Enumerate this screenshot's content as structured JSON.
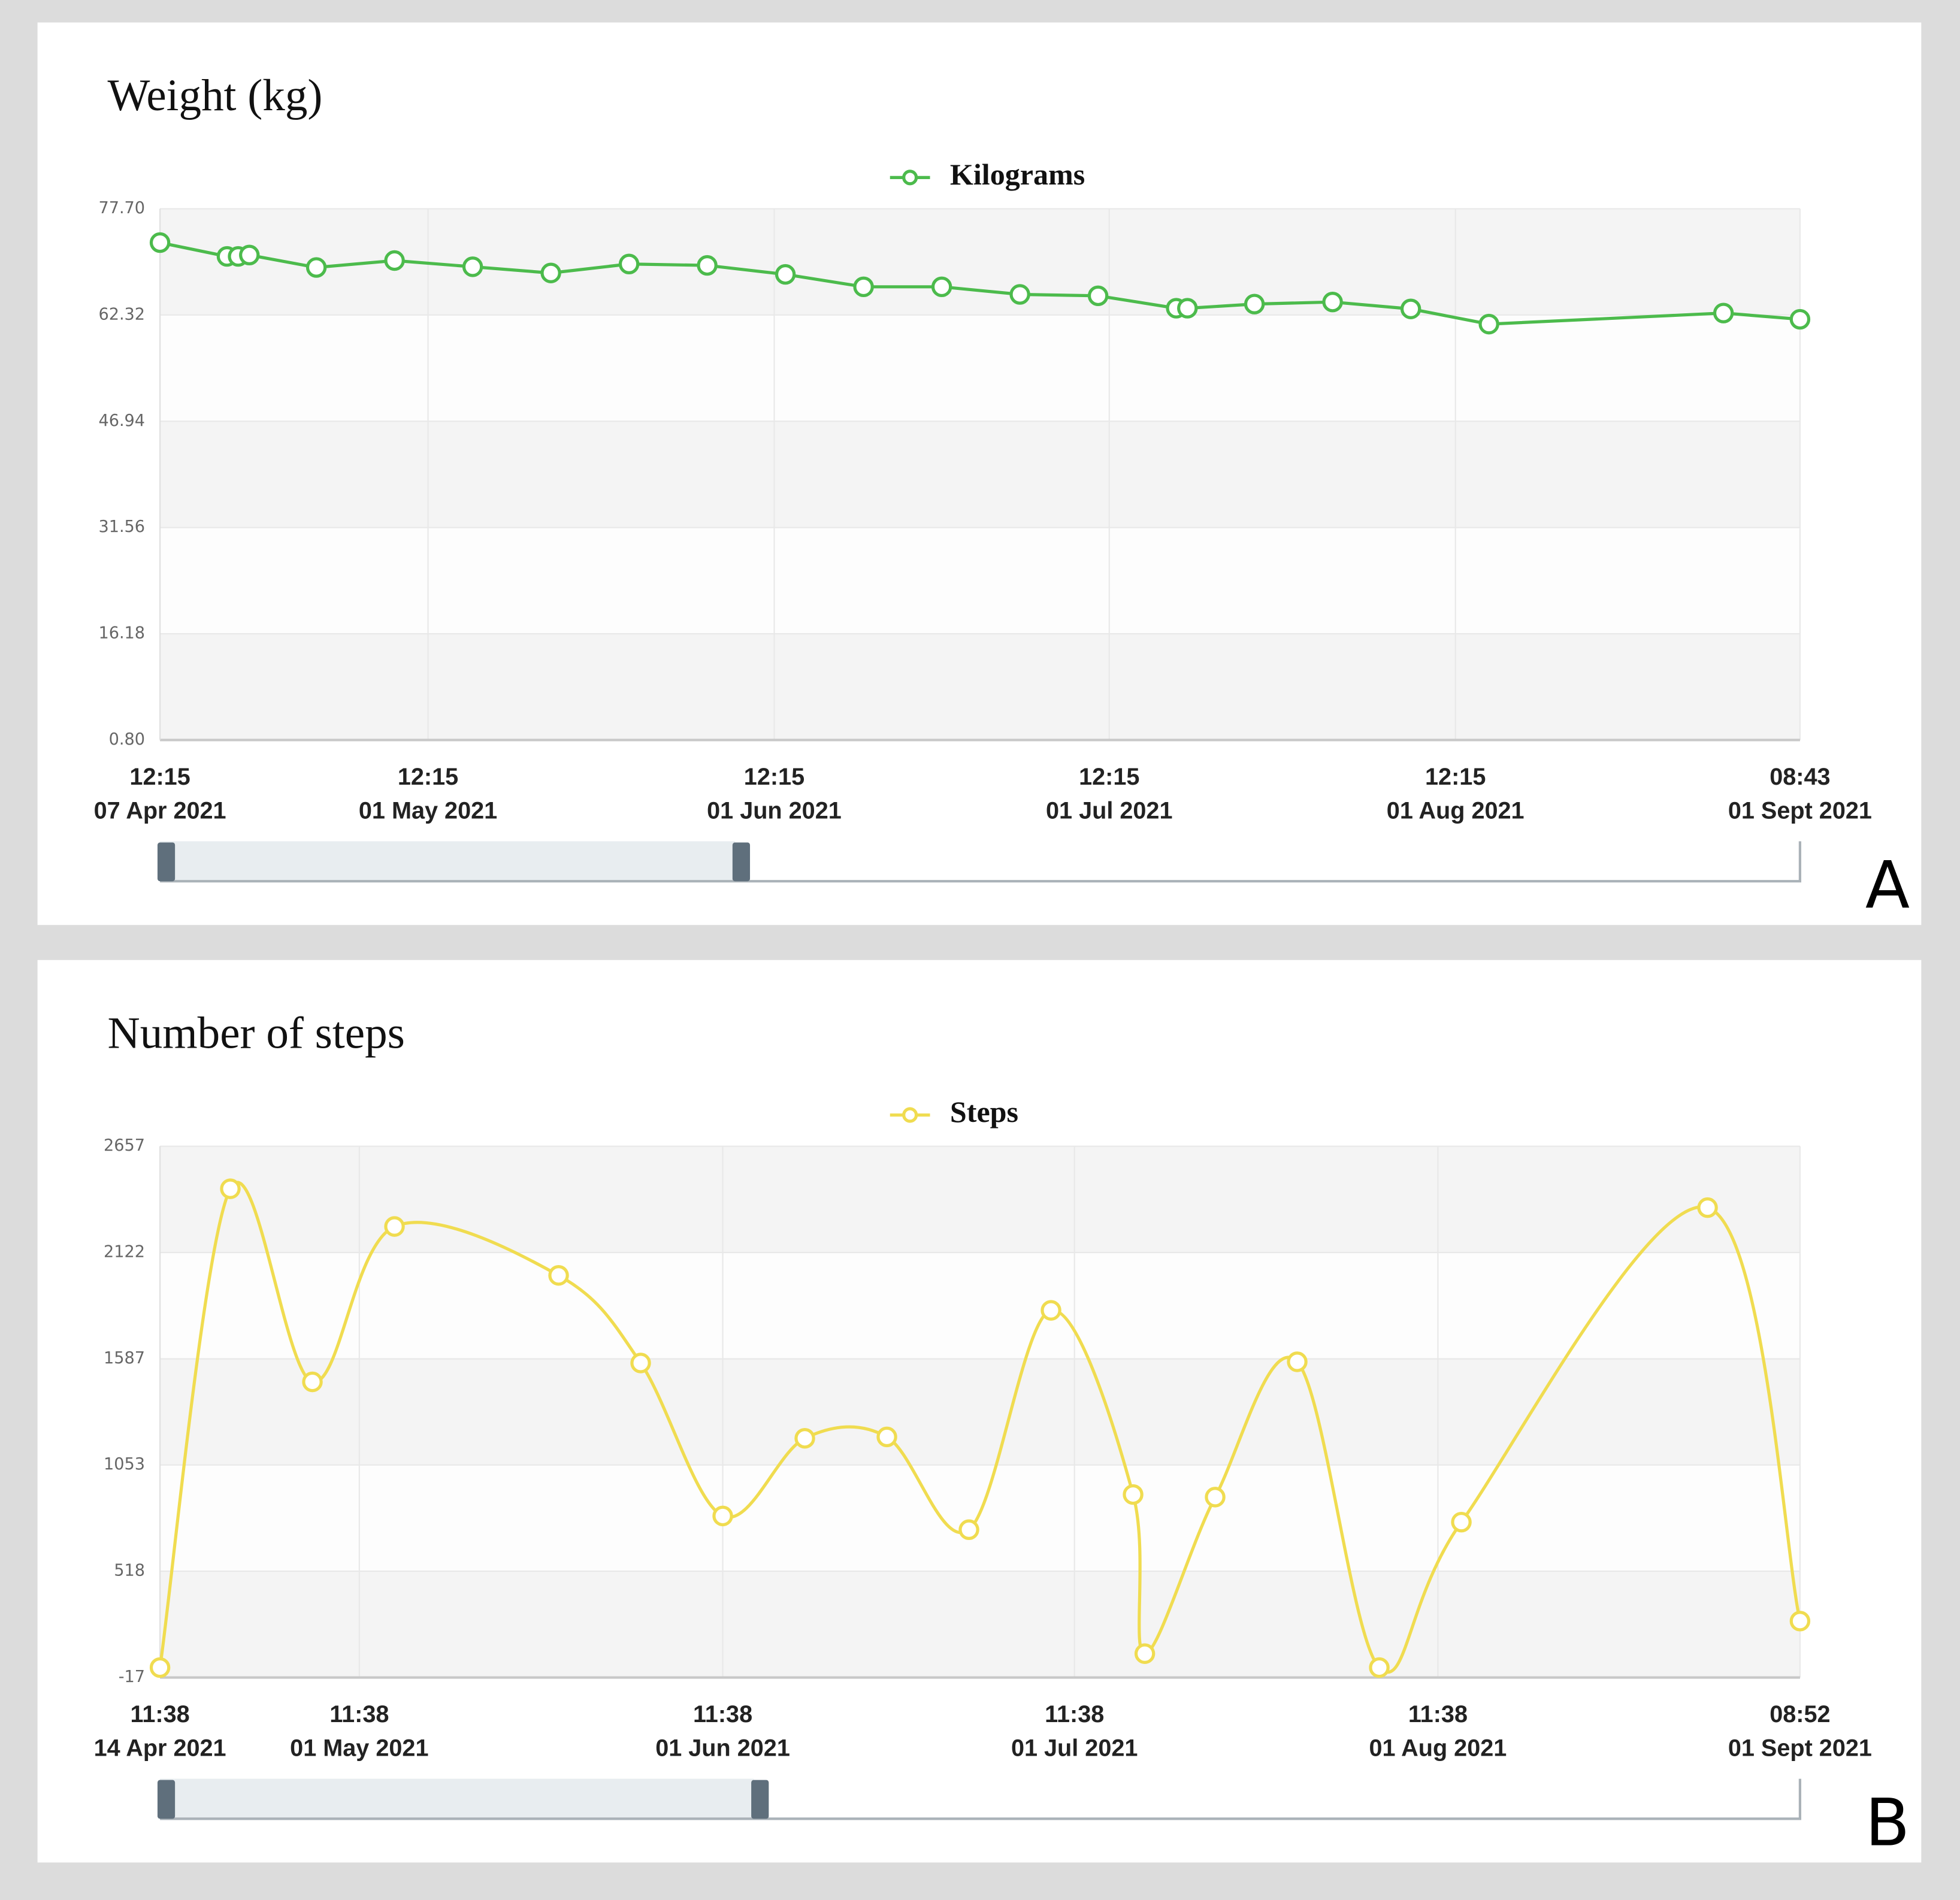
{
  "chart_data": [
    {
      "type": "line",
      "title": "Weight (kg)",
      "panel_label": "A",
      "legend": "top",
      "grid": true,
      "x": [
        "2021-04-07T12:15",
        "2021-04-13T12:15",
        "2021-04-14T12:15",
        "2021-04-15T12:15",
        "2021-04-21T12:15",
        "2021-04-28T12:15",
        "2021-05-05T12:15",
        "2021-05-12T12:15",
        "2021-05-19T12:15",
        "2021-05-26T12:15",
        "2021-06-02T12:15",
        "2021-06-09T12:15",
        "2021-06-16T12:15",
        "2021-06-23T12:15",
        "2021-06-30T12:15",
        "2021-07-07T12:15",
        "2021-07-08T12:15",
        "2021-07-14T12:15",
        "2021-07-21T12:15",
        "2021-07-28T12:15",
        "2021-08-04T12:15",
        "2021-08-25T12:15",
        "2021-09-01T08:43"
      ],
      "series": [
        {
          "name": "Kilograms",
          "color": "#4cbb4c",
          "values": [
            72.8,
            70.8,
            70.8,
            71.0,
            69.2,
            70.2,
            69.3,
            68.4,
            69.7,
            69.5,
            68.2,
            66.4,
            66.4,
            65.3,
            65.1,
            63.3,
            63.3,
            63.9,
            64.2,
            63.2,
            61.0,
            62.6,
            61.7
          ]
        }
      ],
      "xlim": [
        "2021-04-07T12:15",
        "2021-09-01T08:43"
      ],
      "xticks": [
        {
          "value": "2021-04-07T12:15",
          "label": [
            "12:15",
            "07 Apr 2021"
          ]
        },
        {
          "value": "2021-05-01T12:15",
          "label": [
            "12:15",
            "01 May 2021"
          ]
        },
        {
          "value": "2021-06-01T12:15",
          "label": [
            "12:15",
            "01 Jun 2021"
          ]
        },
        {
          "value": "2021-07-01T12:15",
          "label": [
            "12:15",
            "01 Jul 2021"
          ]
        },
        {
          "value": "2021-08-01T12:15",
          "label": [
            "12:15",
            "01 Aug 2021"
          ]
        },
        {
          "value": "2021-09-01T08:43",
          "label": [
            "08:43",
            "01 Sept 2021"
          ]
        }
      ],
      "ylim": [
        0.8,
        77.7
      ],
      "yticks": [
        {
          "value": 0.8,
          "label": "0.80"
        },
        16.18,
        31.56,
        46.94,
        62.32,
        {
          "value": 77.7,
          "label": "77.70"
        }
      ]
    },
    {
      "type": "line",
      "title": "Number of steps",
      "panel_label": "B",
      "legend": "top",
      "grid": true,
      "smooth": true,
      "x": [
        "2021-04-14T11:38",
        "2021-04-20T11:38",
        "2021-04-27T11:38",
        "2021-05-04T11:38",
        "2021-05-18T11:38",
        "2021-05-25T11:38",
        "2021-06-01T11:38",
        "2021-06-08T11:38",
        "2021-06-15T11:38",
        "2021-06-22T11:38",
        "2021-06-29T11:38",
        "2021-07-06T11:38",
        "2021-07-07T11:38",
        "2021-07-13T11:38",
        "2021-07-20T11:38",
        "2021-07-27T11:38",
        "2021-08-03T11:38",
        "2021-08-24T11:38",
        "2021-09-01T08:52"
      ],
      "series": [
        {
          "name": "Steps",
          "color": "#f0dc50",
          "values": [
            33,
            2443,
            1471,
            2253,
            2007,
            1566,
            796,
            1187,
            1194,
            727,
            1831,
            904,
            103,
            891,
            1572,
            33,
            765,
            2348,
            267
          ]
        }
      ],
      "xlim": [
        "2021-04-14T11:38",
        "2021-09-01T08:52"
      ],
      "xticks": [
        {
          "value": "2021-04-14T11:38",
          "label": [
            "11:38",
            "14 Apr 2021"
          ]
        },
        {
          "value": "2021-05-01T11:38",
          "label": [
            "11:38",
            "01 May 2021"
          ]
        },
        {
          "value": "2021-06-01T11:38",
          "label": [
            "11:38",
            "01 Jun 2021"
          ]
        },
        {
          "value": "2021-07-01T11:38",
          "label": [
            "11:38",
            "01 Jul 2021"
          ]
        },
        {
          "value": "2021-08-01T11:38",
          "label": [
            "11:38",
            "01 Aug 2021"
          ]
        },
        {
          "value": "2021-09-01T08:52",
          "label": [
            "08:52",
            "01 Sept 2021"
          ]
        }
      ],
      "ylim": [
        -17,
        2657
      ],
      "yticks": [
        -17,
        518,
        1053,
        1587,
        2122,
        2657
      ]
    }
  ]
}
